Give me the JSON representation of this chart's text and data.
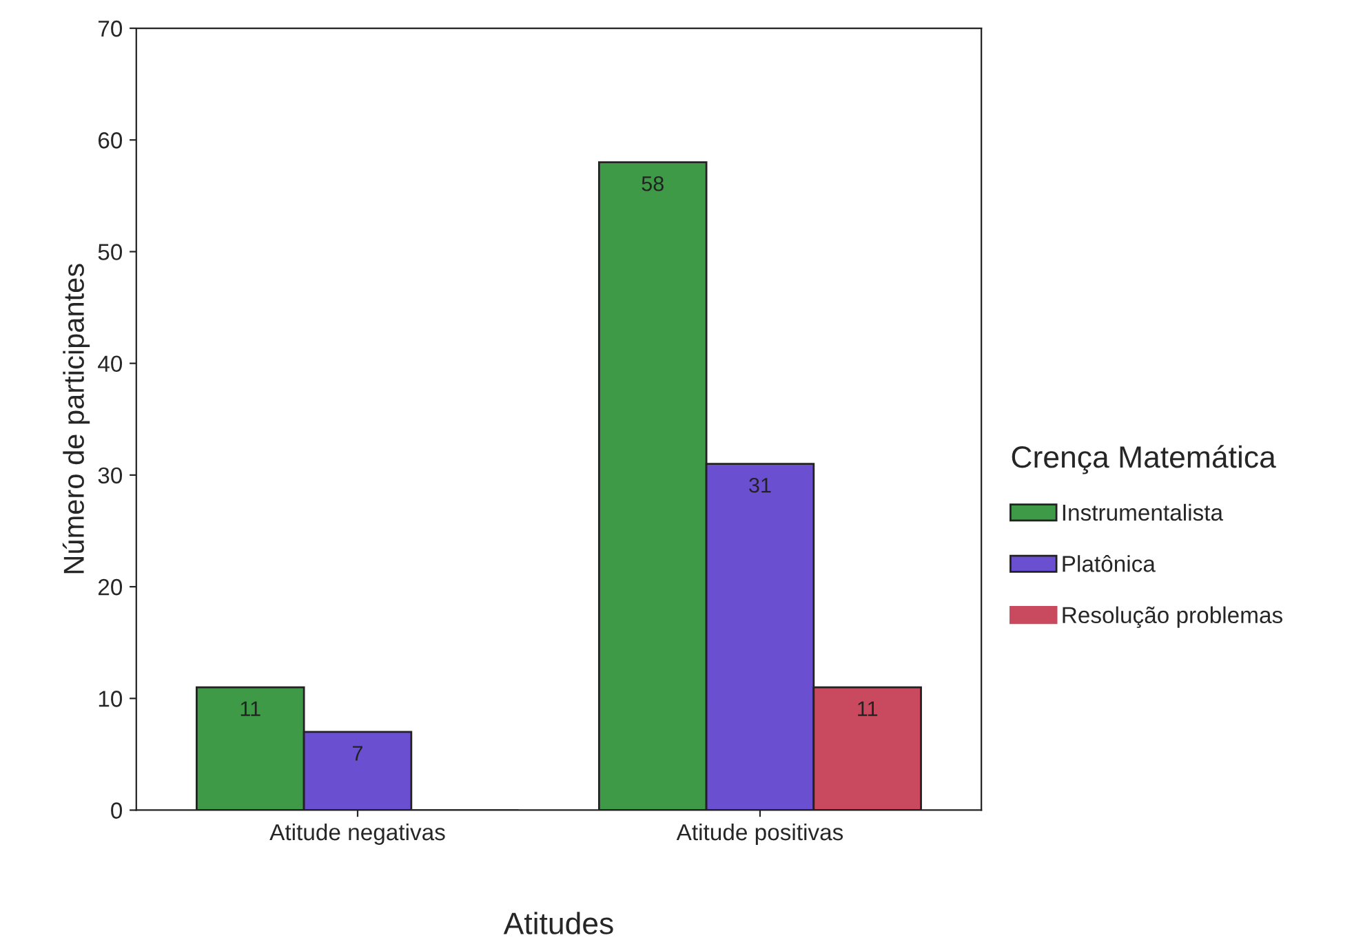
{
  "chart_data": {
    "type": "bar",
    "xlabel": "Atitudes",
    "ylabel": "Número de participantes",
    "legend_title": "Crença Matemática",
    "categories": [
      "Atitude negativas",
      "Atitude positivas"
    ],
    "series": [
      {
        "name": "Instrumentalista",
        "color": "#3e9a46",
        "values": [
          11,
          58
        ],
        "value_labels": [
          "11",
          "58"
        ]
      },
      {
        "name": "Platônica",
        "color": "#6a4fd0",
        "values": [
          7,
          31
        ],
        "value_labels": [
          "7",
          "31"
        ]
      },
      {
        "name": "Resolução problemas",
        "color": "#c9495e",
        "values": [
          0,
          11
        ],
        "value_labels": [
          null,
          "11"
        ]
      }
    ],
    "ylim": [
      0,
      70
    ],
    "yticks": [
      0,
      10,
      20,
      30,
      40,
      50,
      60,
      70
    ],
    "legend": "right",
    "grid": false
  }
}
